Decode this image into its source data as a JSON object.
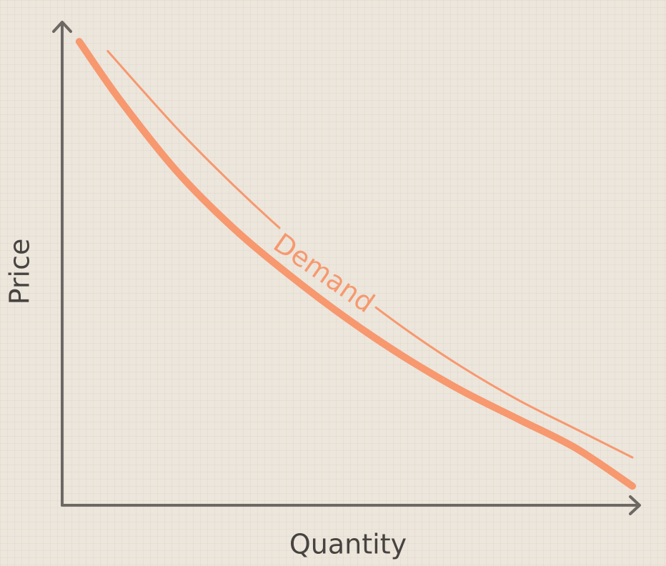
{
  "chart_data": {
    "type": "line",
    "title": "",
    "xlabel": "Quantity",
    "ylabel": "Price",
    "grid": true,
    "legend": "none",
    "xlim": [
      0,
      10
    ],
    "ylim": [
      0,
      10
    ],
    "series": [
      {
        "name": "Demand",
        "role": "curve",
        "x": [
          0.3,
          1,
          2,
          3,
          4,
          5,
          6,
          7,
          8,
          9,
          10
        ],
        "y": [
          9.7,
          8.5,
          7.0,
          5.8,
          4.8,
          3.9,
          3.1,
          2.4,
          1.8,
          1.2,
          0.4
        ]
      },
      {
        "name": "",
        "role": "label-guide",
        "x": [
          0.8,
          2,
          3,
          4,
          5,
          6,
          7,
          8,
          9,
          10
        ],
        "y": [
          9.5,
          7.9,
          6.7,
          5.6,
          4.6,
          3.7,
          2.9,
          2.2,
          1.6,
          1.0
        ]
      }
    ],
    "colors": {
      "axis": "#6e6865",
      "curve": "#f7986f",
      "text": "#474340",
      "background": "#ece6dc"
    }
  }
}
